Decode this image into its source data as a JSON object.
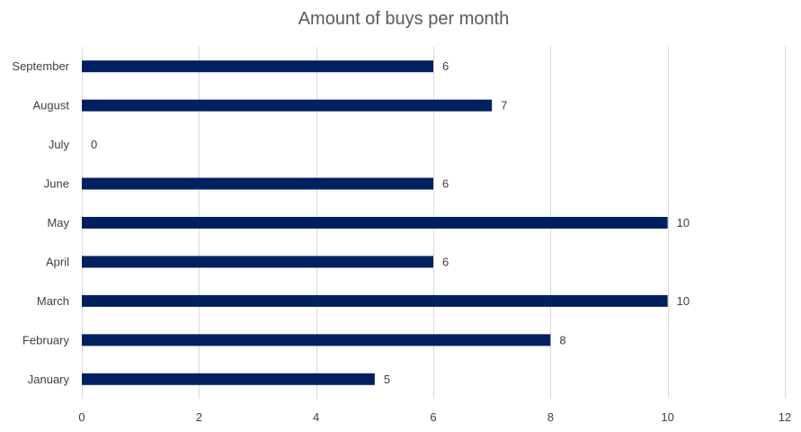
{
  "chart_data": {
    "type": "bar",
    "orientation": "horizontal",
    "title": "Amount of buys per month",
    "categories": [
      "January",
      "February",
      "March",
      "April",
      "May",
      "June",
      "July",
      "August",
      "September"
    ],
    "series": [
      {
        "values": [
          5,
          8,
          10,
          6,
          10,
          6,
          0,
          7,
          6
        ]
      }
    ],
    "xlim": [
      0,
      12
    ],
    "x_ticks": [
      0,
      2,
      4,
      6,
      8,
      10,
      12
    ],
    "grid": true,
    "legend": "none",
    "data_labels": true,
    "colors": {
      "bar": "#002060"
    }
  }
}
